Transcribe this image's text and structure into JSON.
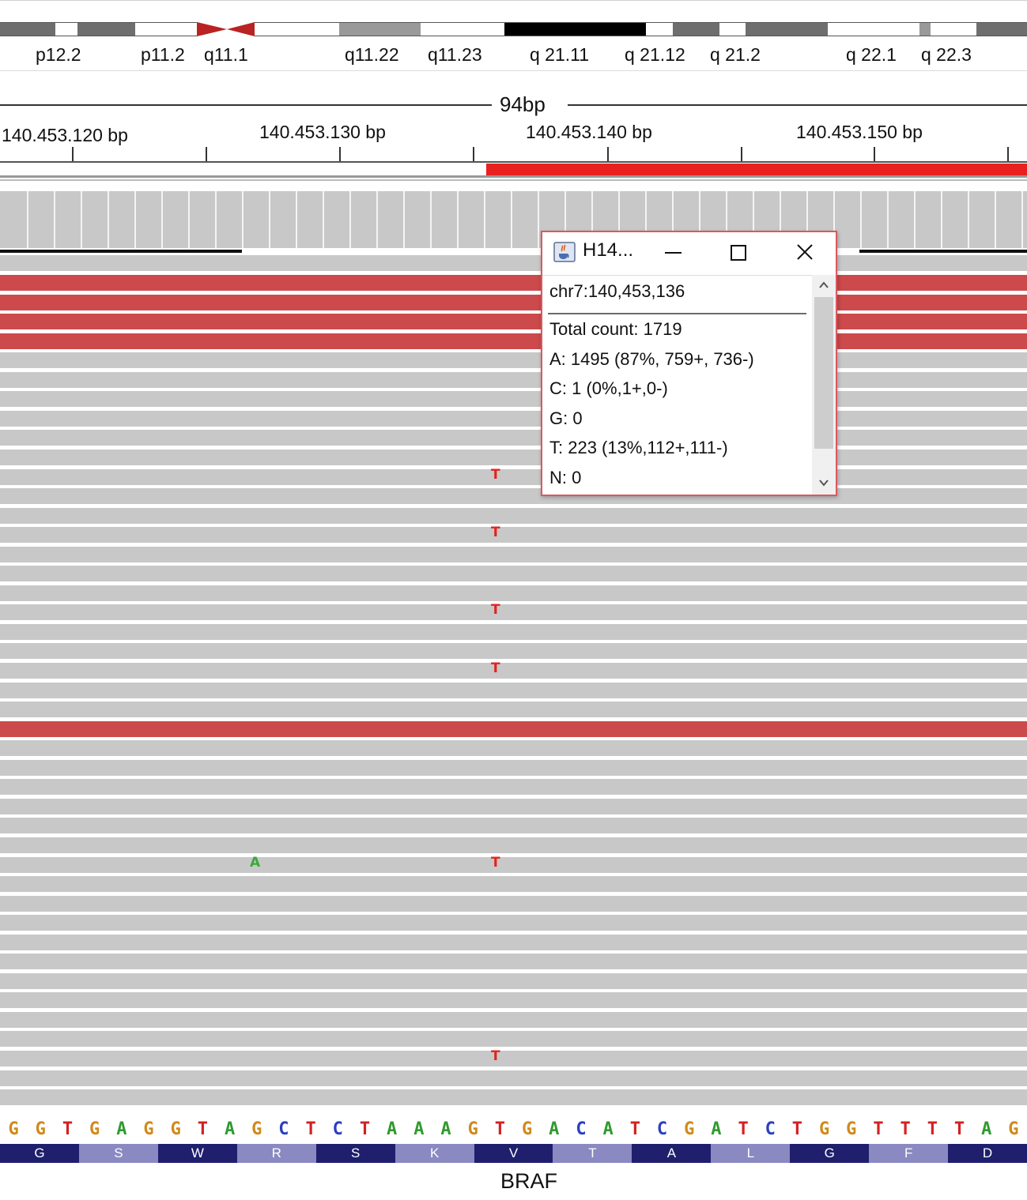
{
  "ideogram": {
    "bands": [
      {
        "color": "#6e6e6e"
      },
      {
        "color": "#ffffff"
      },
      {
        "color": "#6e6e6e"
      },
      {
        "color": "#ffffff"
      },
      {
        "color": "#ffffff"
      },
      {
        "color": "#999999"
      },
      {
        "color": "#ffffff"
      },
      {
        "color": "#000000"
      },
      {
        "color": "#ffffff"
      },
      {
        "color": "#6e6e6e"
      },
      {
        "color": "#ffffff"
      },
      {
        "color": "#6e6e6e"
      },
      {
        "color": "#ffffff"
      },
      {
        "color": "#999999"
      },
      {
        "color": "#ffffff"
      },
      {
        "color": "#6e6e6e"
      }
    ],
    "centromere_color": "#b92323",
    "labels": [
      "p12.2",
      "p11.2",
      "q11.1",
      "q11.22",
      "q11.23",
      "q 21.11",
      "q 21.12",
      "q 21.2",
      "q 22.1",
      "q 22.3"
    ]
  },
  "ruler": {
    "span": "94bp",
    "positions": [
      "140.453.120 bp",
      "140.453.130 bp",
      "140.453.140 bp",
      "140.453.150 bp"
    ]
  },
  "colors": {
    "read": "#c8c8c9",
    "read_red": "#cc4a4c",
    "mismatch_T": "#e0241f",
    "mismatch_A": "#3aa83a",
    "exon": "#e8211f"
  },
  "reads": {
    "red_rows": [
      1,
      2,
      3,
      4,
      24
    ],
    "mismatches": [
      {
        "row": 11,
        "base": "T"
      },
      {
        "row": 14,
        "base": "T"
      },
      {
        "row": 18,
        "base": "T"
      },
      {
        "row": 21,
        "base": "T"
      },
      {
        "row": 31,
        "base": "A"
      },
      {
        "row": 31,
        "base": "T"
      },
      {
        "row": 41,
        "base": "T"
      }
    ]
  },
  "sequence": {
    "bases": [
      "G",
      "G",
      "T",
      "G",
      "A",
      "G",
      "G",
      "T",
      "A",
      "G",
      "C",
      "T",
      "C",
      "T",
      "A",
      "A",
      "A",
      "G",
      "T",
      "G",
      "A",
      "C",
      "A",
      "T",
      "C",
      "G",
      "A",
      "T",
      "C",
      "T",
      "G",
      "G",
      "T",
      "T",
      "T",
      "T",
      "A",
      "G"
    ],
    "base_colors": {
      "G": "#d08a1a",
      "T": "#d42020",
      "A": "#2f9a2f",
      "C": "#2a3fbf"
    }
  },
  "translation": {
    "amino_acids": [
      "G",
      "S",
      "W",
      "R",
      "S",
      "K",
      "V",
      "T",
      "A",
      "L",
      "G",
      "F",
      "D"
    ],
    "dark": "#1f1f6e",
    "light": "#8a89c2"
  },
  "gene": "BRAF",
  "popup": {
    "title": "H14...",
    "icon": "java-cup-icon",
    "locus": "chr7:140,453,136",
    "lines": [
      "Total count: 1719",
      "A: 1495 (87%, 759+, 736-)",
      "C: 1 (0%,1+,0-)",
      "G: 0",
      "T: 223 (13%,112+,111-)",
      "N: 0"
    ]
  }
}
